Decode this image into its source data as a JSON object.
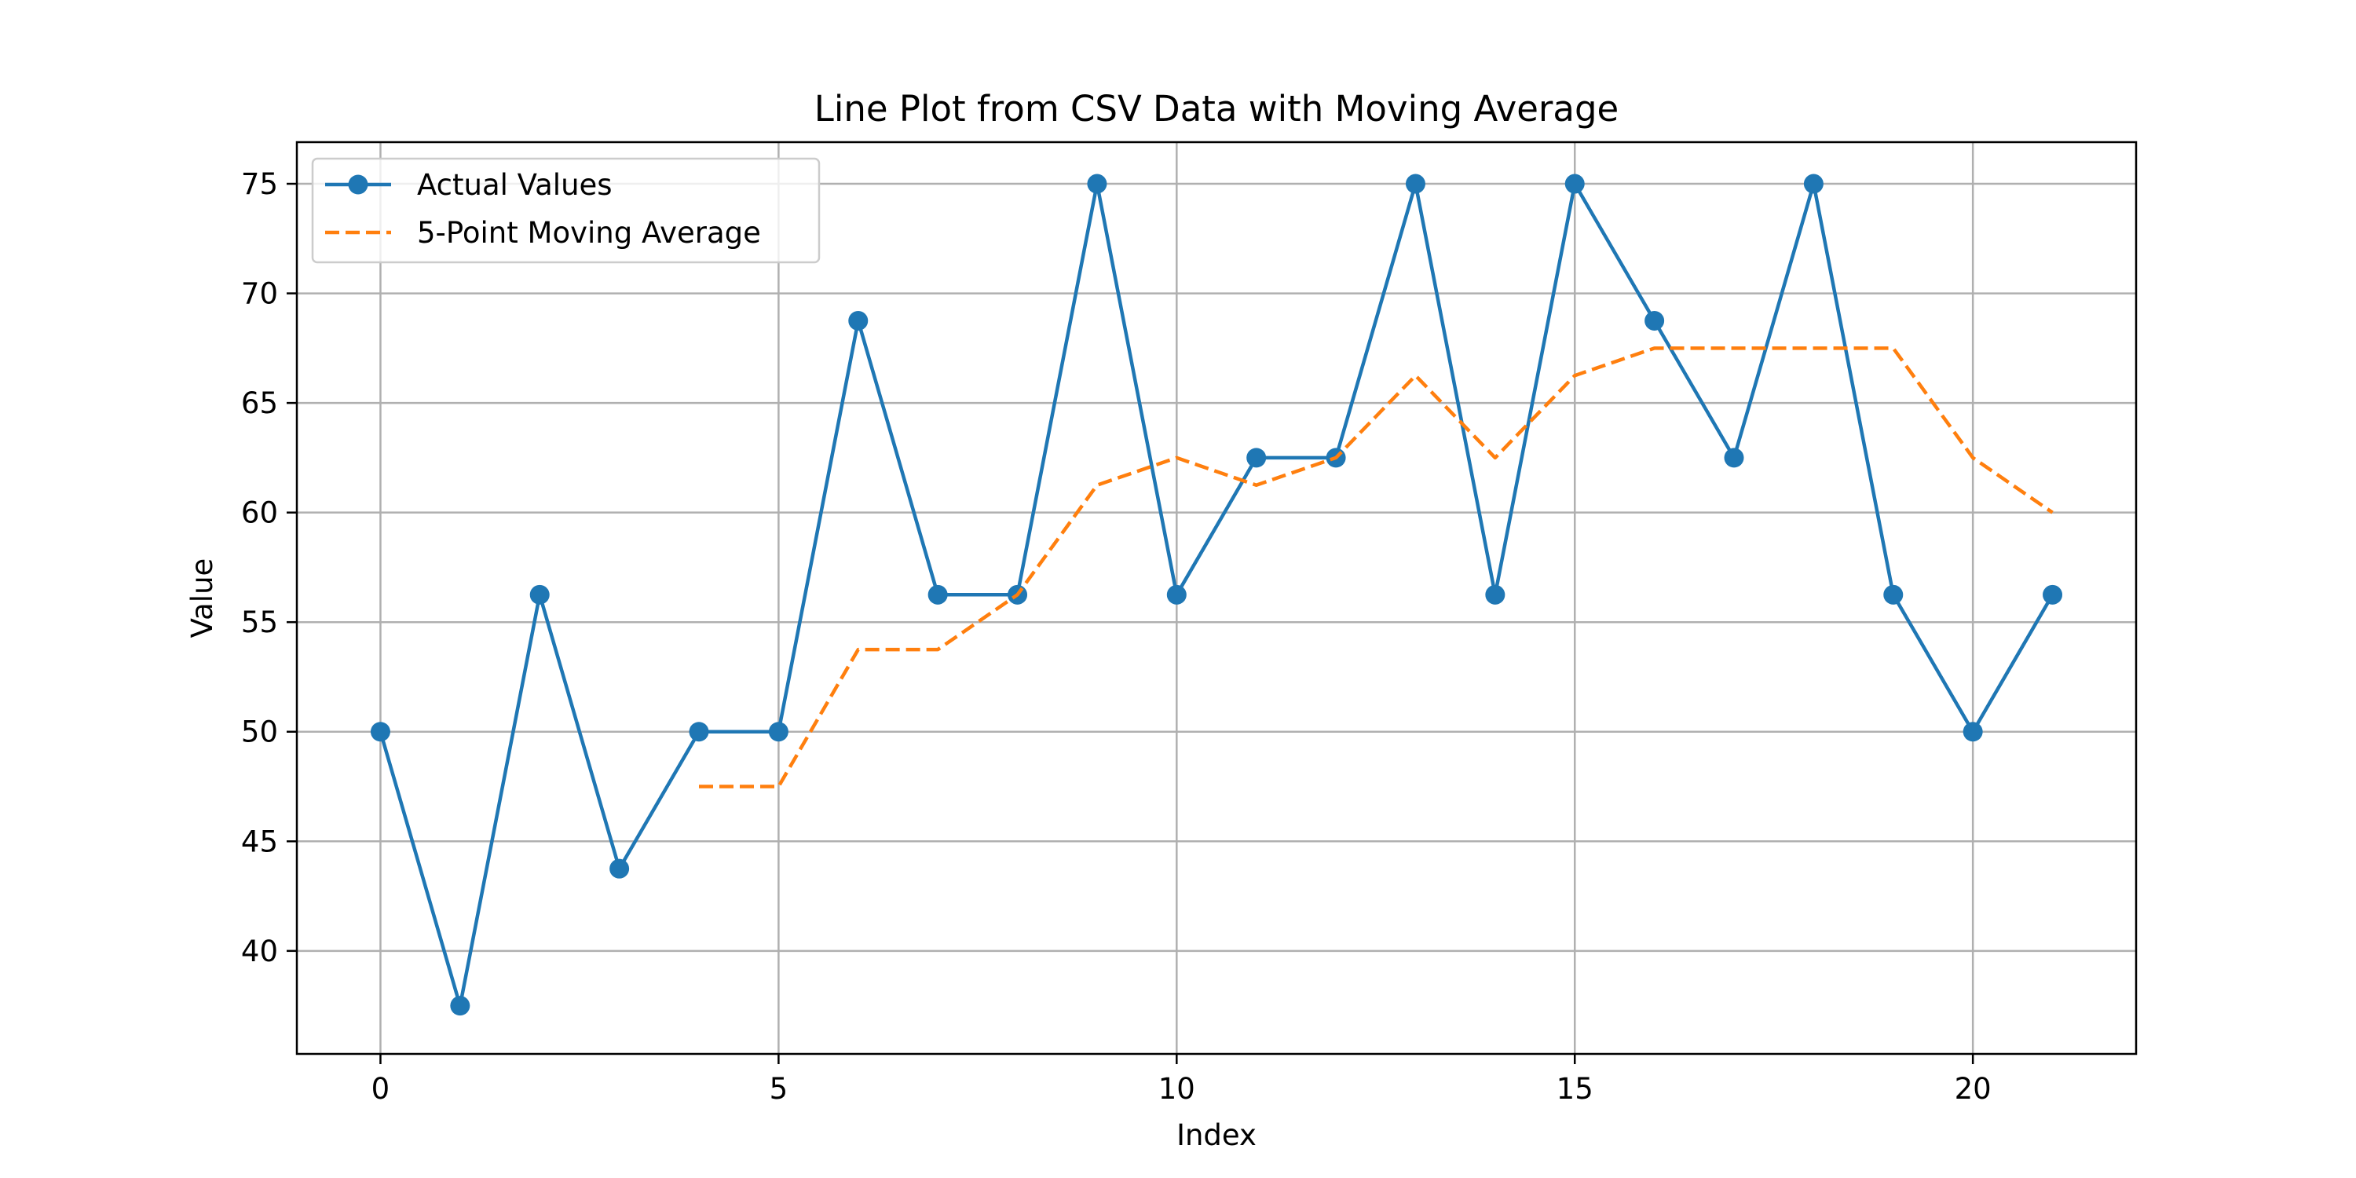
{
  "chart_data": {
    "type": "line",
    "title": "Line Plot from CSV Data with Moving Average",
    "xlabel": "Index",
    "ylabel": "Value",
    "xlim": [
      -1.05,
      22.05
    ],
    "ylim": [
      35.3,
      76.9
    ],
    "xticks": [
      0,
      5,
      10,
      15,
      20
    ],
    "yticks": [
      40,
      45,
      50,
      55,
      60,
      65,
      70,
      75
    ],
    "grid": true,
    "legend_position": "upper-left",
    "series": [
      {
        "name": "Actual Values",
        "style": "solid-with-markers",
        "color": "#1f77b4",
        "x": [
          0,
          1,
          2,
          3,
          4,
          5,
          6,
          7,
          8,
          9,
          10,
          11,
          12,
          13,
          14,
          15,
          16,
          17,
          18,
          19,
          20,
          21
        ],
        "values": [
          50,
          37.5,
          56.25,
          43.75,
          50,
          50,
          68.75,
          56.25,
          56.25,
          75,
          56.25,
          62.5,
          62.5,
          75,
          56.25,
          75,
          68.75,
          62.5,
          75,
          56.25,
          50,
          56.25
        ]
      },
      {
        "name": "5-Point Moving Average",
        "style": "dashed",
        "color": "#ff7f0e",
        "x": [
          4,
          5,
          6,
          7,
          8,
          9,
          10,
          11,
          12,
          13,
          14,
          15,
          16,
          17,
          18,
          19,
          20,
          21
        ],
        "values": [
          47.5,
          47.5,
          53.75,
          53.75,
          56.25,
          61.25,
          62.5,
          61.25,
          62.5,
          66.25,
          62.5,
          66.25,
          67.5,
          67.5,
          67.5,
          67.5,
          62.5,
          60
        ]
      }
    ]
  }
}
